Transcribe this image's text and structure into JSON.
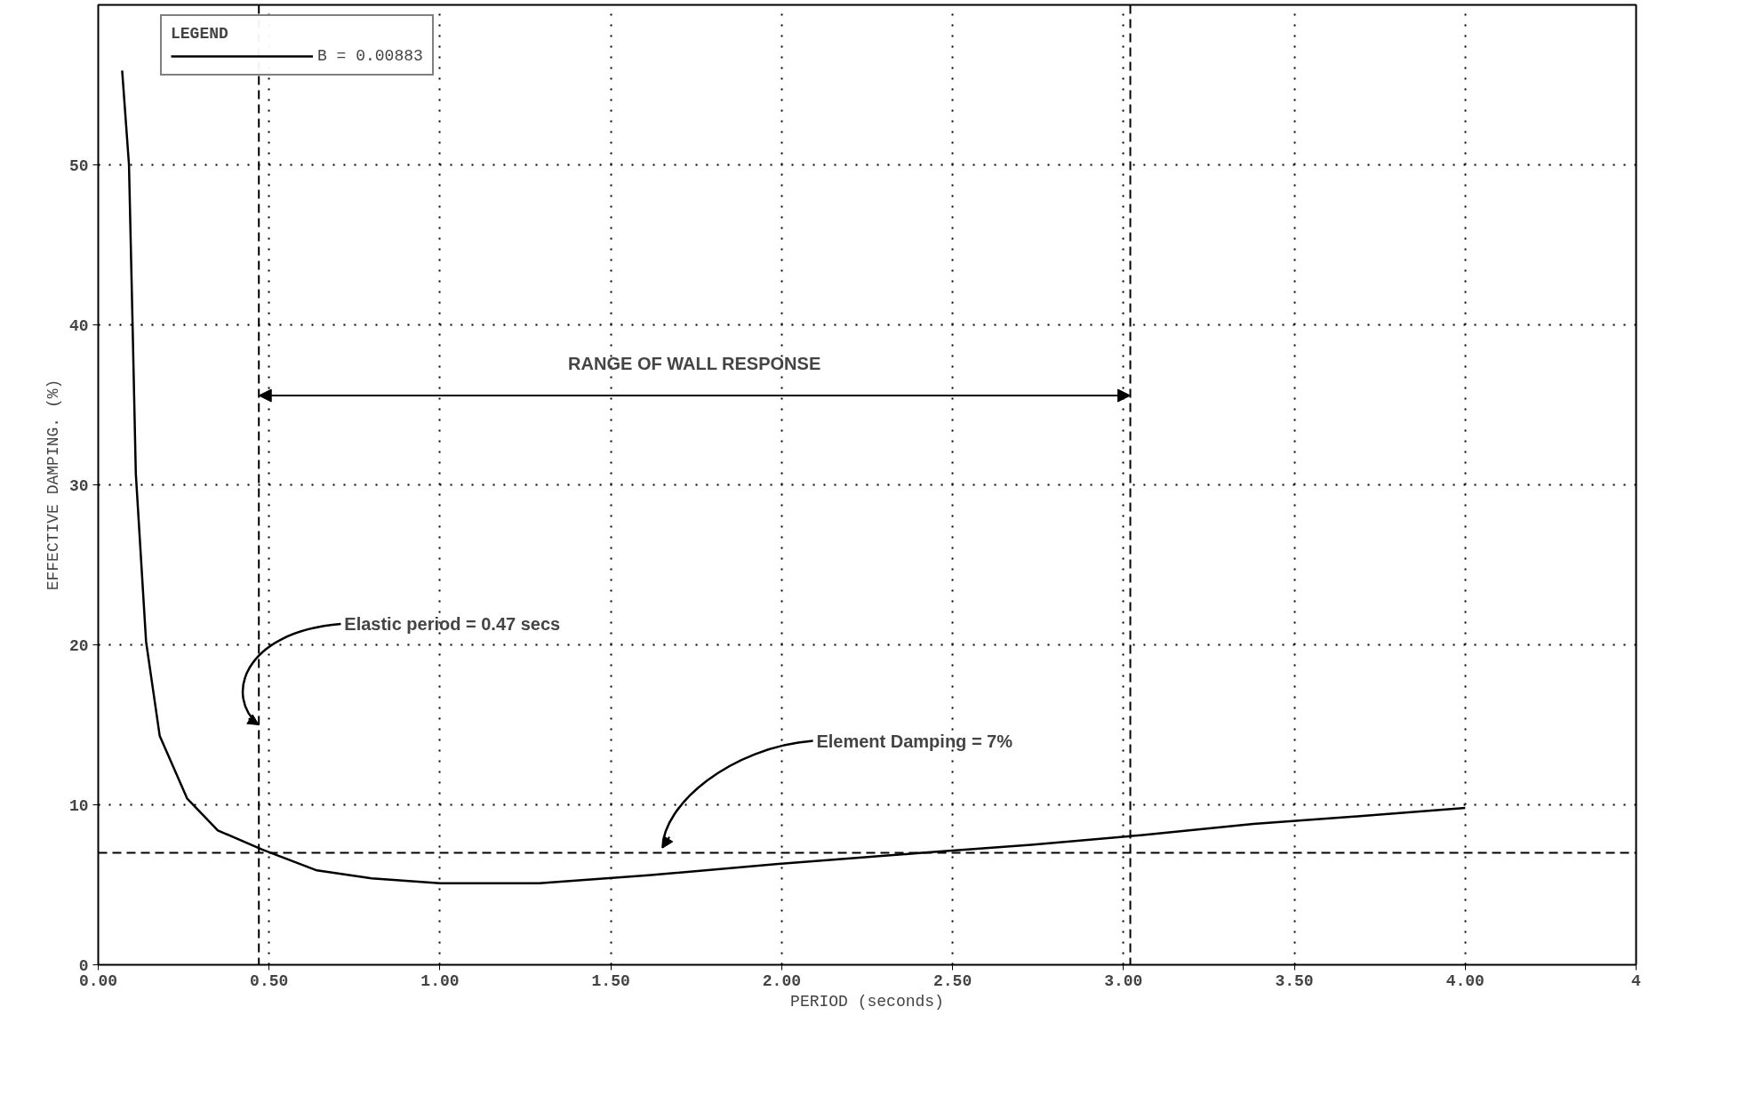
{
  "chart_data": {
    "type": "line",
    "xlabel": "PERIOD (seconds)",
    "ylabel": "EFFECTIVE DAMPING. (%)",
    "legend_title": "LEGEND",
    "x": [
      0.07,
      0.09,
      0.1,
      0.11,
      0.14,
      0.18,
      0.26,
      0.35,
      0.48,
      0.64,
      0.8,
      1.0,
      1.29,
      1.61,
      1.99,
      2.41,
      2.73,
      3.05,
      3.38,
      3.7,
      4.0
    ],
    "series": [
      {
        "name": "B = 0.00883",
        "color": "#000000",
        "values": [
          55.9,
          50,
          40.5,
          30.7,
          20.2,
          14.3,
          10.4,
          8.4,
          7.2,
          5.9,
          5.4,
          5.1,
          5.1,
          5.6,
          6.3,
          7.0,
          7.5,
          8.1,
          8.8,
          9.3,
          9.8
        ]
      }
    ],
    "xlim": [
      0,
      4.5
    ],
    "ylim": [
      0,
      60
    ],
    "xticks": [
      {
        "value": 0,
        "label": "0.00"
      },
      {
        "value": 0.5,
        "label": "0.50"
      },
      {
        "value": 1,
        "label": "1.00"
      },
      {
        "value": 1.5,
        "label": "1.50"
      },
      {
        "value": 2,
        "label": "2.00"
      },
      {
        "value": 2.5,
        "label": "2.50"
      },
      {
        "value": 3,
        "label": "3.00"
      },
      {
        "value": 3.5,
        "label": "3.50"
      },
      {
        "value": 4,
        "label": "4.00"
      },
      {
        "value": 4.5,
        "label": "4"
      }
    ],
    "yticks": [
      0,
      10,
      20,
      30,
      40,
      50
    ],
    "grid": true,
    "legend": "top left",
    "marker": "none",
    "line_style": "solid",
    "ref_lines": [
      {
        "axis": "x",
        "value": 0.47,
        "line_style": "dashed"
      },
      {
        "axis": "x",
        "value": 3.02,
        "line_style": "dashed"
      },
      {
        "axis": "y",
        "value": 7,
        "line_style": "dashed"
      }
    ],
    "annotations": [
      "RANGE OF WALL RESPONSE",
      {
        "text": "Elastic period = 0.47 secs",
        "x": 0.47,
        "y": 15
      },
      "Element Damping = 7%"
    ]
  }
}
